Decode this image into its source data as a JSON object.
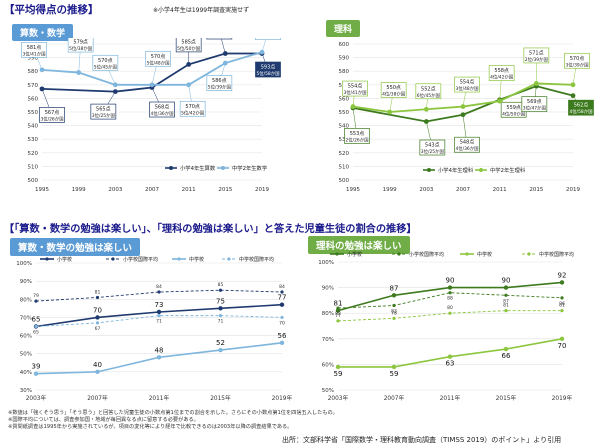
{
  "header": {
    "title": "【平均得点の推移】",
    "note": "※小学4年生は1999年調査実施せず",
    "section2_title": "【「算数・数学の勉強は楽しい」、「理科の勉強は楽しい」と答えた児童生徒の割合の推移】"
  },
  "footnotes": [
    "※数値は「強くそう思う」「そう思う」と回答した児童生徒の小数点第1位までの割合を示した。さらにその小数点第1位を四捨五入したもの。",
    "※国際平均については、調査参加国・地域が毎回異なる点に留意する必要がある。",
    "※質問紙調査は1995年から実施されているが、項目の変化等により経年で比較できるのは2003年以降の調査結果である。"
  ],
  "source": "出所：文部科学省「国際数学・理科教育動向調査（TIMSS 2019）のポイント」より引用",
  "colors": {
    "navy": "#1f3a6e",
    "lightblue": "#7fb6dd",
    "dark_green": "#3d7a1e",
    "light_green": "#8cc63f",
    "math_badge": "#5b9bd5",
    "sci_badge": "#70ad47",
    "header": "#1a1a8c"
  },
  "chart_data": [
    {
      "id": "math_scores",
      "type": "line",
      "title": "算数・数学",
      "x": [
        "1995",
        "1999",
        "2003",
        "2007",
        "2011",
        "2015",
        "2019"
      ],
      "ylim": [
        500,
        600
      ],
      "yticks": [
        500,
        510,
        520,
        530,
        540,
        550,
        560,
        570,
        580,
        590,
        600
      ],
      "series": [
        {
          "name": "小学4年生算数",
          "values": [
            567,
            null,
            565,
            568,
            585,
            593,
            593
          ],
          "labels": [
            "567点 3位/26か国",
            "",
            "565点 3位/25か国",
            "568点 4位/36か国",
            "585点 5位/50か国",
            "593点 5位/49か国",
            "593点 5位/58か国"
          ]
        },
        {
          "name": "中学2年生数学",
          "values": [
            581,
            579,
            570,
            570,
            570,
            586,
            594
          ],
          "labels": [
            "581点 3位/41か国",
            "579点 5位/38か国",
            "570点 5位/45か国",
            "570点 5位/48か国",
            "570点 5位/42か国",
            "586点 5位/39か国",
            "594点 4位/39か国"
          ]
        }
      ]
    },
    {
      "id": "science_scores",
      "type": "line",
      "title": "理科",
      "x": [
        "1995",
        "1999",
        "2003",
        "2007",
        "2011",
        "2015",
        "2019"
      ],
      "ylim": [
        500,
        600
      ],
      "yticks": [
        500,
        510,
        520,
        530,
        540,
        550,
        560,
        570,
        580,
        590,
        600
      ],
      "series": [
        {
          "name": "小学4年生理科",
          "values": [
            553,
            null,
            543,
            548,
            559,
            569,
            562
          ],
          "labels": [
            "553点 2位/26か国",
            "",
            "543点 3位/25か国",
            "548点 4位/36か国",
            "559点 4位/50か国",
            "569点 3位/47か国",
            "562点 4位/58か国"
          ]
        },
        {
          "name": "中学2年生理科",
          "values": [
            554,
            550,
            552,
            554,
            558,
            571,
            570
          ],
          "labels": [
            "554点 3位/41か国",
            "550点 4位/38か国",
            "552点 6位/45か国",
            "554点 3位/48か国",
            "558点 4位/42か国",
            "571点 2位/39か国",
            "570点 3位/39か国"
          ]
        }
      ]
    },
    {
      "id": "math_enjoy",
      "type": "line",
      "title": "算数・数学の勉強は楽しい",
      "x": [
        "2003年",
        "2007年",
        "2011年",
        "2015年",
        "2019年"
      ],
      "ylim": [
        30,
        100
      ],
      "yticks": [
        30,
        40,
        50,
        60,
        70,
        80,
        90,
        100
      ],
      "series": [
        {
          "name": "小学校",
          "values": [
            65,
            70,
            73,
            75,
            77
          ]
        },
        {
          "name": "小学校国際平均",
          "values": [
            79,
            81,
            84,
            85,
            84
          ]
        },
        {
          "name": "中学校",
          "values": [
            39,
            40,
            48,
            52,
            56
          ]
        },
        {
          "name": "中学校国際平均",
          "values": [
            65,
            67,
            71,
            71,
            70
          ]
        }
      ]
    },
    {
      "id": "sci_enjoy",
      "type": "line",
      "title": "理科の勉強は楽しい",
      "x": [
        "2003年",
        "2007年",
        "2011年",
        "2015年",
        "2019年"
      ],
      "ylim": [
        50,
        100
      ],
      "yticks": [
        50,
        60,
        70,
        80,
        90,
        100
      ],
      "series": [
        {
          "name": "小学校",
          "values": [
            81,
            87,
            90,
            90,
            92
          ]
        },
        {
          "name": "小学校国際平均",
          "values": [
            82,
            83,
            88,
            87,
            86
          ]
        },
        {
          "name": "中学校",
          "values": [
            59,
            59,
            63,
            66,
            70
          ]
        },
        {
          "name": "中学校国際平均",
          "values": [
            77,
            78,
            80,
            81,
            81
          ]
        }
      ]
    }
  ]
}
